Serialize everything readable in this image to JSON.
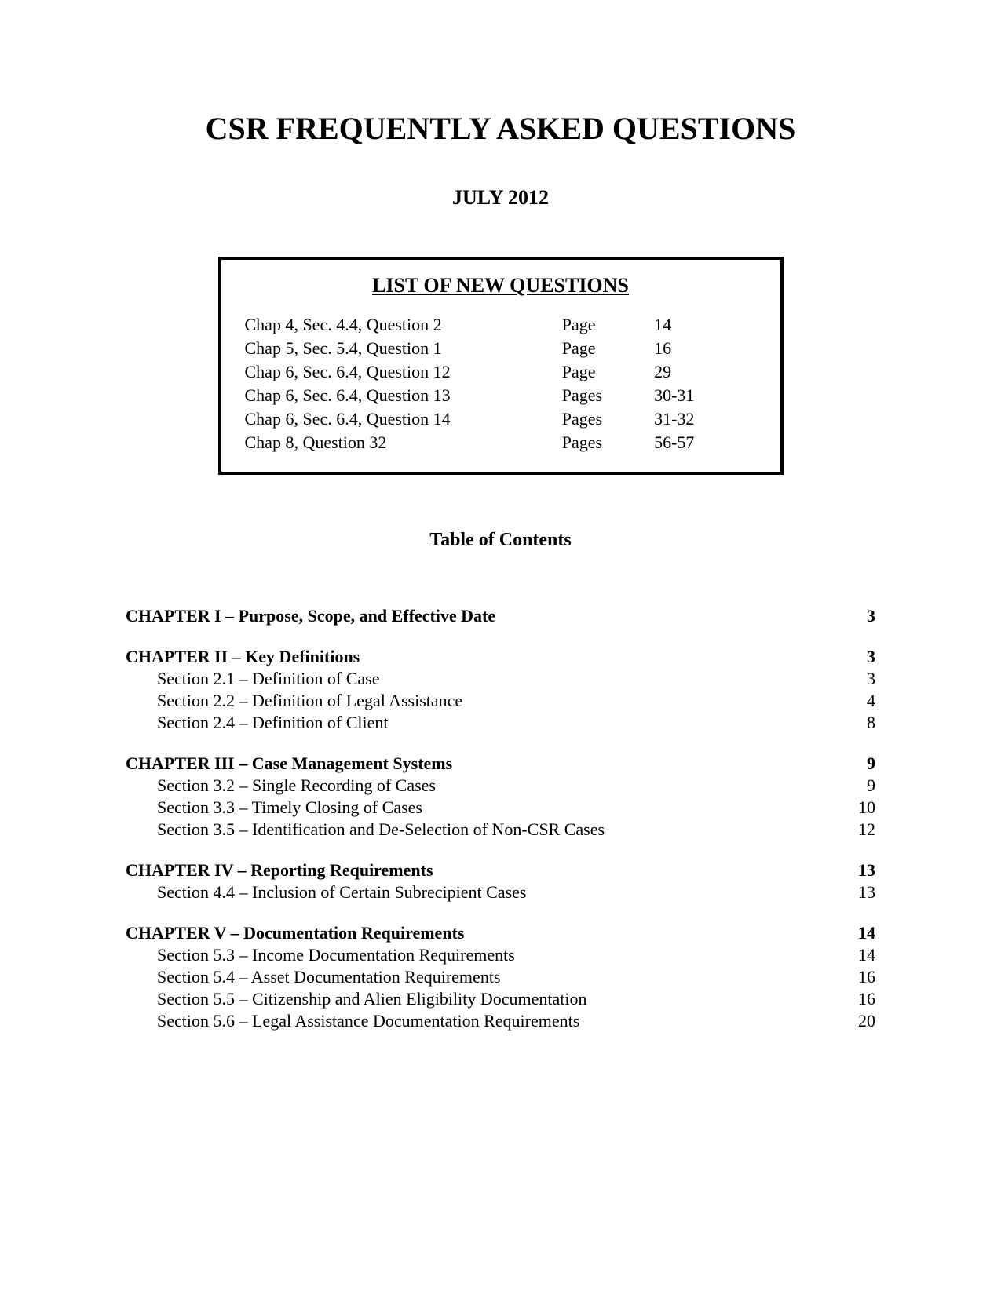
{
  "title": "CSR FREQUENTLY ASKED QUESTIONS",
  "subtitle": "JULY 2012",
  "colors": {
    "background": "#ffffff",
    "text": "#000000",
    "box_border": "#000000"
  },
  "typography": {
    "font_family": "Times New Roman",
    "title_fontsize": 40,
    "subtitle_fontsize": 26,
    "box_heading_fontsize": 26,
    "body_fontsize": 22,
    "toc_heading_fontsize": 24
  },
  "new_questions": {
    "heading": "LIST OF NEW QUESTIONS",
    "rows": [
      {
        "ref": "Chap 4, Sec. 4.4, Question 2",
        "page_label": "Page",
        "pages": "14"
      },
      {
        "ref": "Chap 5, Sec. 5.4, Question 1",
        "page_label": "Page",
        "pages": "16"
      },
      {
        "ref": "Chap 6, Sec. 6.4, Question 12",
        "page_label": "Page",
        "pages": "29"
      },
      {
        "ref": "Chap 6, Sec. 6.4, Question 13",
        "page_label": "Pages",
        "pages": "30-31"
      },
      {
        "ref": "Chap 6, Sec. 6.4, Question 14",
        "page_label": "Pages",
        "pages": "31-32"
      },
      {
        "ref": "Chap 8, Question 32",
        "page_label": "Pages",
        "pages": "56-57"
      }
    ]
  },
  "toc": {
    "heading": "Table of Contents",
    "entries": [
      {
        "level": "chapter",
        "label": "CHAPTER I – Purpose, Scope, and Effective Date",
        "page": "3"
      },
      {
        "level": "gap"
      },
      {
        "level": "chapter",
        "label": "CHAPTER II – Key Definitions",
        "page": "3"
      },
      {
        "level": "section",
        "label": "Section 2.1 – Definition of Case",
        "page": "3"
      },
      {
        "level": "section",
        "label": "Section 2.2 – Definition of Legal Assistance",
        "page": "4"
      },
      {
        "level": "section",
        "label": "Section 2.4 – Definition of Client",
        "page": "8"
      },
      {
        "level": "gap"
      },
      {
        "level": "chapter",
        "label": "CHAPTER III – Case Management Systems",
        "page": "9"
      },
      {
        "level": "section",
        "label": "Section 3.2 – Single Recording of Cases",
        "page": "9"
      },
      {
        "level": "section",
        "label": "Section 3.3 – Timely Closing of Cases",
        "page": "10"
      },
      {
        "level": "section",
        "label": "Section 3.5 – Identification and De-Selection of Non-CSR Cases",
        "page": "12"
      },
      {
        "level": "gap"
      },
      {
        "level": "chapter",
        "label": "CHAPTER IV – Reporting Requirements",
        "page": "13"
      },
      {
        "level": "section",
        "label": "Section 4.4 – Inclusion of Certain Subrecipient Cases",
        "page": "13"
      },
      {
        "level": "gap"
      },
      {
        "level": "chapter",
        "label": "CHAPTER V – Documentation Requirements",
        "page": "14"
      },
      {
        "level": "section",
        "label": "Section 5.3 – Income Documentation Requirements",
        "page": "14"
      },
      {
        "level": "section",
        "label": "Section 5.4 – Asset Documentation Requirements",
        "page": "16"
      },
      {
        "level": "section",
        "label": "Section 5.5 – Citizenship and Alien Eligibility Documentation",
        "page": "16"
      },
      {
        "level": "section",
        "label": "Section 5.6 – Legal Assistance Documentation Requirements ",
        "page": "20"
      }
    ]
  }
}
